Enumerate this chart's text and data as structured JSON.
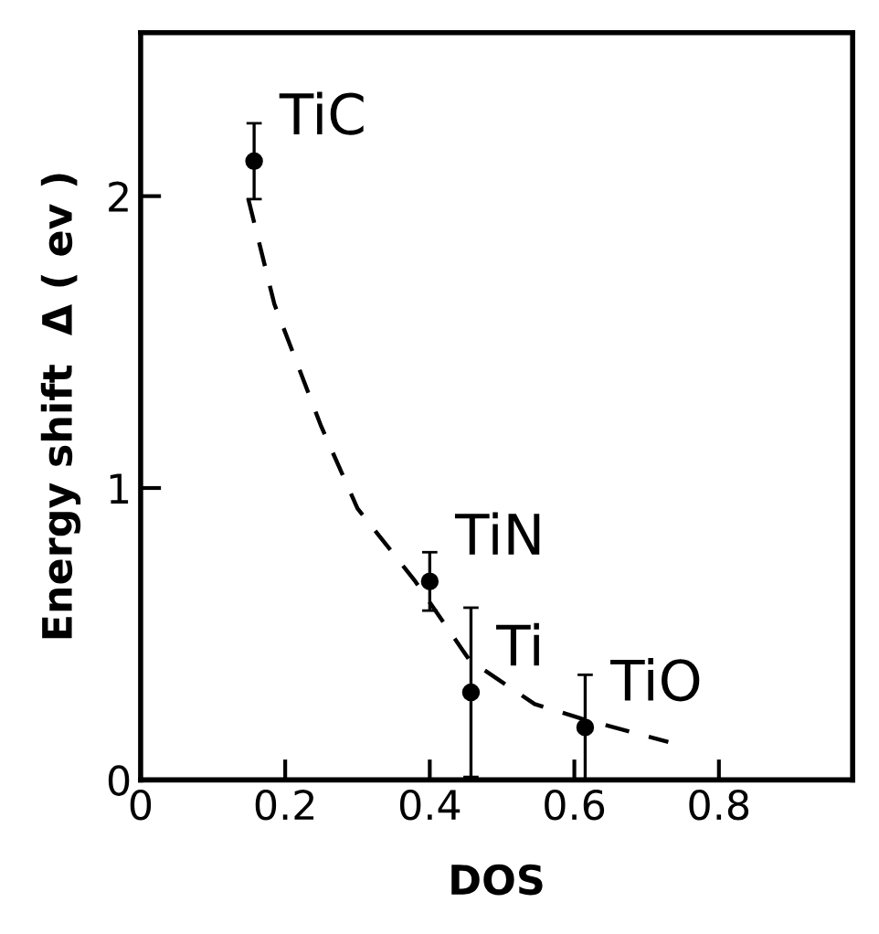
{
  "chart_data": {
    "type": "scatter",
    "xlabel": "DOS",
    "ylabel": "Energy shift  Δ ( ev )",
    "xlim": [
      0,
      0.985
    ],
    "ylim": [
      0,
      2.56
    ],
    "xticks": [
      0,
      0.2,
      0.4,
      0.6,
      0.8
    ],
    "yticks": [
      0,
      1,
      2
    ],
    "grid": false,
    "series": [
      {
        "marker": "circle",
        "color": "#000000",
        "x": [
          0.157,
          0.4,
          0.457,
          0.615
        ],
        "values": [
          2.12,
          0.68,
          0.3,
          0.18
        ],
        "errors": [
          0.13,
          0.1,
          0.29,
          0.18
        ]
      },
      {
        "type": "line",
        "color": "#000000",
        "line_style": "dashed",
        "x": [
          0.149,
          0.185,
          0.25,
          0.3,
          0.38,
          0.455,
          0.545,
          0.61,
          0.73
        ],
        "values": [
          1.99,
          1.63,
          1.21,
          0.93,
          0.68,
          0.41,
          0.26,
          0.21,
          0.13
        ]
      }
    ],
    "annotations": [
      {
        "text": "TiC",
        "x": 0.157,
        "y": 2.12
      },
      {
        "text": "TiN",
        "x": 0.4,
        "y": 0.68
      },
      {
        "text": "Ti",
        "x": 0.457,
        "y": 0.3
      },
      {
        "text": "TiO",
        "x": 0.615,
        "y": 0.18
      }
    ]
  }
}
